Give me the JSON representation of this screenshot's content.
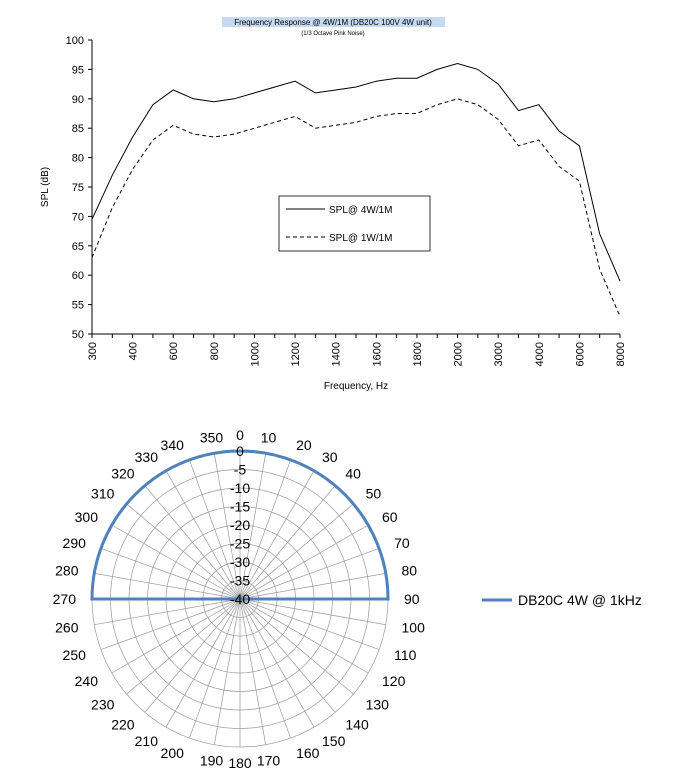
{
  "chart_data": [
    {
      "type": "line",
      "title": "Frequency Response @ 4W/1M (DB20C 100V 4W unit)",
      "subtitle": "(1/3 Octave Pink Noise)",
      "xlabel": "Frequency, Hz",
      "ylabel": "SPL (dB)",
      "x_scale": "categorical",
      "categories": [
        "300",
        "400",
        "600",
        "800",
        "1000",
        "1200",
        "1400",
        "1600",
        "1800",
        "2000",
        "3000",
        "4000",
        "6000",
        "8000"
      ],
      "x": [
        300,
        350,
        400,
        500,
        600,
        700,
        800,
        900,
        1000,
        1100,
        1200,
        1300,
        1400,
        1500,
        1600,
        1700,
        1800,
        1900,
        2000,
        2500,
        3000,
        3500,
        4000,
        5000,
        6000,
        7000,
        8000
      ],
      "ylim": [
        50,
        100
      ],
      "yticks": [
        "50",
        "55",
        "60",
        "65",
        "70",
        "75",
        "80",
        "85",
        "90",
        "95",
        "100"
      ],
      "grid": false,
      "legend_position": "center",
      "series": [
        {
          "name": "SPL@ 4W/1M",
          "style": "solid",
          "values": [
            69.5,
            77,
            83.5,
            89,
            91.5,
            90,
            89.5,
            90,
            91,
            92,
            93,
            91,
            91.5,
            92,
            93,
            93.5,
            93.5,
            95,
            96,
            95,
            92.5,
            88,
            89,
            84.5,
            82,
            67,
            59
          ]
        },
        {
          "name": "SPL@ 1W/1M",
          "style": "dashed",
          "values": [
            63,
            71.5,
            78,
            83,
            85.5,
            84,
            83.5,
            84,
            85,
            86,
            87,
            85,
            85.5,
            86,
            87,
            87.5,
            87.5,
            89,
            90,
            89,
            86.5,
            82,
            83,
            78.5,
            76,
            61,
            53
          ]
        }
      ]
    },
    {
      "type": "polar",
      "angle_labels": [
        "0",
        "10",
        "20",
        "30",
        "40",
        "50",
        "60",
        "70",
        "80",
        "90",
        "100",
        "110",
        "120",
        "130",
        "140",
        "150",
        "160",
        "170",
        "180",
        "190",
        "200",
        "210",
        "220",
        "230",
        "240",
        "250",
        "260",
        "270",
        "280",
        "290",
        "300",
        "310",
        "320",
        "330",
        "340",
        "350"
      ],
      "radial_labels": [
        "0",
        "-5",
        "-10",
        "-15",
        "-20",
        "-25",
        "-30",
        "-35",
        "-40"
      ],
      "rlim": [
        -40,
        0
      ],
      "legend_position": "right",
      "series": [
        {
          "name": "DB20C 4W @ 1kHz",
          "color": "#4f81bd",
          "angles": [
            0,
            10,
            20,
            30,
            40,
            50,
            60,
            70,
            80,
            90,
            270,
            280,
            290,
            300,
            310,
            320,
            330,
            340,
            350
          ],
          "values": [
            0,
            0,
            0,
            0,
            0,
            0,
            0,
            0,
            0,
            0,
            0,
            0,
            0,
            0,
            0,
            0,
            0,
            0,
            0
          ]
        }
      ]
    }
  ]
}
